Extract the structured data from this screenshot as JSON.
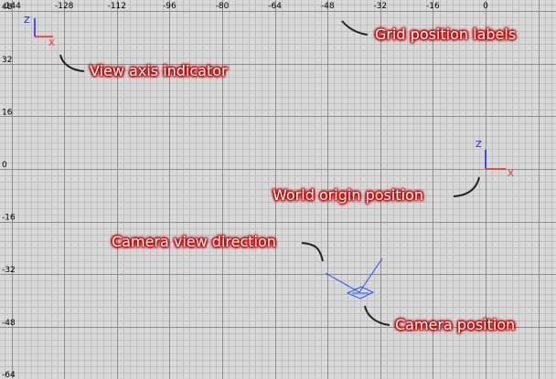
{
  "grid": {
    "x_labels": [
      "-144",
      "-128",
      "-112",
      "-96",
      "-80",
      "-64",
      "-48",
      "-32",
      "-16",
      "0"
    ],
    "y_labels": [
      "48",
      "32",
      "16",
      "0",
      "-16",
      "-32",
      "-48",
      "-64"
    ]
  },
  "view_axis_indicator": {
    "z_label": "Z",
    "x_label": "X"
  },
  "world_origin_gizmo": {
    "z_label": "Z",
    "x_label": "X"
  },
  "annotations": {
    "grid_position_labels": "Grid position labels",
    "view_axis_indicator": "View axis indicator",
    "world_origin_position": "World origin position",
    "camera_view_direction": "Camera view direction",
    "camera_position": "Camera position"
  },
  "colors": {
    "background": "#d9d9d9",
    "minor_grid": "#bfbfbf",
    "major_grid": "#8c8c8c",
    "axis_x": "#ff2020",
    "axis_z": "#2020ff",
    "camera": "#2050ff",
    "callout_glow": "#cc0000"
  }
}
